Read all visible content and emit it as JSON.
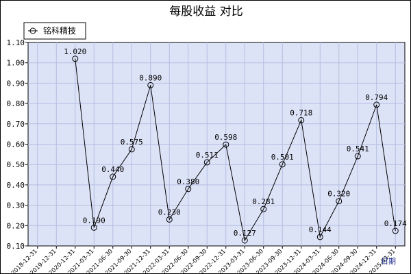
{
  "chart_data": {
    "type": "line",
    "title": "每股收益  对比",
    "xlabel": "日期",
    "ylabel": "",
    "legend": {
      "position": "top-left",
      "entries": [
        "铭科精技"
      ]
    },
    "grid": true,
    "ylim": [
      0.1,
      1.1
    ],
    "yticks": [
      "0.10",
      "0.20",
      "0.30",
      "0.40",
      "0.50",
      "0.60",
      "0.70",
      "0.80",
      "0.90",
      "1.00",
      "1.10"
    ],
    "categories": [
      "2018-12-31",
      "2019-12-31",
      "2020-12-31",
      "2021-03-31",
      "2021-06-30",
      "2021-09-30",
      "2021-12-31",
      "2022-03-31",
      "2022-06-30",
      "2022-09-30",
      "2022-12-31",
      "2023-03-31",
      "2023-06-30",
      "2023-09-30",
      "2023-12-31",
      "2024-03-31",
      "2024-06-30",
      "2024-09-30",
      "2024-12-31",
      "2025-03-31"
    ],
    "series": [
      {
        "name": "铭科精技",
        "color": "#000000",
        "points": [
          {
            "x": "2020-12-31",
            "y": 1.02,
            "label": "1.020"
          },
          {
            "x": "2021-03-31",
            "y": 0.19,
            "label": "0.190"
          },
          {
            "x": "2021-06-30",
            "y": 0.44,
            "label": "0.440"
          },
          {
            "x": "2021-09-30",
            "y": 0.575,
            "label": "0.575"
          },
          {
            "x": "2021-12-31",
            "y": 0.89,
            "label": "0.890"
          },
          {
            "x": "2022-03-31",
            "y": 0.23,
            "label": "0.230"
          },
          {
            "x": "2022-06-30",
            "y": 0.38,
            "label": "0.380"
          },
          {
            "x": "2022-09-30",
            "y": 0.511,
            "label": "0.511"
          },
          {
            "x": "2022-12-31",
            "y": 0.598,
            "label": "0.598"
          },
          {
            "x": "2023-03-31",
            "y": 0.127,
            "label": "0.127"
          },
          {
            "x": "2023-06-30",
            "y": 0.281,
            "label": "0.281"
          },
          {
            "x": "2023-09-30",
            "y": 0.501,
            "label": "0.501"
          },
          {
            "x": "2023-12-31",
            "y": 0.718,
            "label": "0.718"
          },
          {
            "x": "2024-03-31",
            "y": 0.144,
            "label": "0.144"
          },
          {
            "x": "2024-06-30",
            "y": 0.32,
            "label": "0.320"
          },
          {
            "x": "2024-09-30",
            "y": 0.541,
            "label": "0.541"
          },
          {
            "x": "2024-12-31",
            "y": 0.794,
            "label": "0.794"
          },
          {
            "x": "2025-03-31",
            "y": 0.174,
            "label": "0.174"
          }
        ]
      }
    ],
    "colors": {
      "plot_background": "#dde3f7",
      "grid": "#b4bde2",
      "border": "#000000"
    }
  }
}
